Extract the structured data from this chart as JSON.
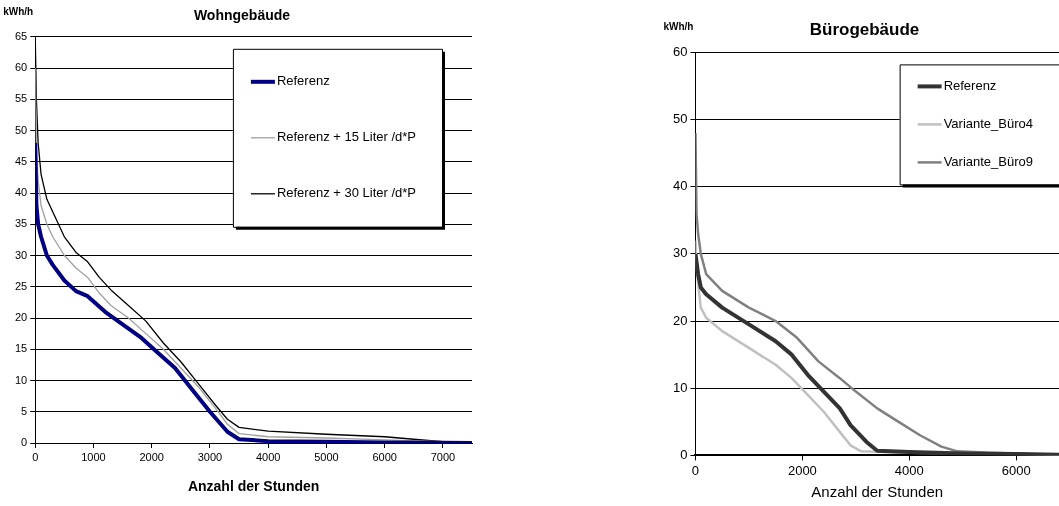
{
  "chart_data": [
    {
      "type": "line",
      "title": "Wohngebäude",
      "ylabel": "kWh/h",
      "xlabel": "Anzahl der Stunden",
      "xlim": [
        0,
        7500
      ],
      "xticks": [
        0,
        1000,
        2000,
        3000,
        4000,
        5000,
        6000,
        7000
      ],
      "ylim": [
        0,
        65
      ],
      "yticks": [
        0,
        5,
        10,
        15,
        20,
        25,
        30,
        35,
        40,
        45,
        50,
        55,
        60,
        65
      ],
      "grid": "y",
      "legend": "top right",
      "marker": "none",
      "line_style": "solid",
      "series": [
        {
          "name": "Referenz",
          "color": "#000080",
          "x": [
            0,
            20,
            50,
            100,
            200,
            300,
            500,
            700,
            900,
            1200,
            1500,
            1800,
            2100,
            2400,
            2700,
            3000,
            3300,
            3500,
            4000,
            5000,
            6000,
            7000,
            7500
          ],
          "values": [
            48,
            38,
            35,
            33,
            30,
            28.5,
            26,
            24.3,
            23.5,
            21,
            19,
            17,
            14.5,
            12,
            8.5,
            5,
            1.8,
            0.6,
            0.3,
            0.2,
            0.1,
            0.05,
            0
          ]
        },
        {
          "name": "Referenz + 15 Liter /d*P",
          "color": "#a0a0a0",
          "x": [
            0,
            20,
            50,
            100,
            200,
            300,
            500,
            700,
            900,
            1100,
            1300,
            1600,
            1900,
            2200,
            2500,
            2800,
            3100,
            3300,
            3500,
            4000,
            5000,
            6000,
            7000,
            7500
          ],
          "values": [
            60,
            47,
            42,
            38,
            35,
            33,
            30,
            28,
            26.5,
            24,
            22,
            20,
            17.5,
            15,
            12,
            9,
            5.5,
            3,
            1.5,
            1,
            0.8,
            0.5,
            0.2,
            0
          ]
        },
        {
          "name": "Referenz + 30 Liter /d*P",
          "color": "#000000",
          "x": [
            0,
            20,
            50,
            100,
            200,
            300,
            500,
            700,
            900,
            1100,
            1300,
            1600,
            1900,
            2200,
            2500,
            2800,
            3100,
            3300,
            3500,
            4000,
            5000,
            6000,
            6500,
            7000,
            7500
          ],
          "values": [
            65,
            55,
            48,
            43,
            39,
            37,
            33,
            30.5,
            29,
            26.5,
            24.5,
            22,
            19.5,
            16,
            13,
            9.5,
            6,
            3.8,
            2.5,
            1.9,
            1.4,
            1,
            0.6,
            0.2,
            0
          ]
        }
      ]
    },
    {
      "type": "line",
      "title": "Bürogebäude",
      "ylabel": "kWh/h",
      "xlabel": "Anzahl der Stunden",
      "xlim": [
        0,
        6800
      ],
      "xticks": [
        0,
        2000,
        4000,
        6000
      ],
      "ylim": [
        0,
        60
      ],
      "yticks": [
        0,
        10,
        20,
        30,
        40,
        50,
        60
      ],
      "grid": "y",
      "legend": "top right",
      "marker": "none",
      "line_style": "solid",
      "series": [
        {
          "name": "Referenz",
          "color": "#333333",
          "x": [
            0,
            50,
            100,
            200,
            500,
            1000,
            1500,
            1800,
            2100,
            2400,
            2700,
            2900,
            3200,
            3400,
            4000,
            5000,
            6000,
            6800
          ],
          "values": [
            30,
            27,
            25,
            24,
            22,
            19.5,
            17,
            15,
            12,
            9.5,
            7,
            4.5,
            2,
            0.7,
            0.5,
            0.3,
            0.2,
            0.1
          ]
        },
        {
          "name": "Variante_Büro4",
          "color": "#c0c0c0",
          "x": [
            0,
            30,
            100,
            200,
            500,
            1000,
            1500,
            1800,
            2100,
            2400,
            2700,
            2900,
            3100,
            4000,
            5000,
            6000,
            6800
          ],
          "values": [
            32,
            27,
            22,
            20.5,
            18.5,
            16,
            13.5,
            11.5,
            9,
            6.5,
            3.5,
            1.5,
            0.6,
            0.4,
            0.3,
            0.2,
            0.1
          ]
        },
        {
          "name": "Variante_Büro9",
          "color": "#808080",
          "x": [
            0,
            20,
            50,
            100,
            200,
            500,
            1000,
            1500,
            1900,
            2300,
            2700,
            3000,
            3400,
            3800,
            4200,
            4600,
            4900,
            5500,
            6000,
            6800
          ],
          "values": [
            48,
            36,
            33,
            30,
            27,
            24.5,
            22,
            20,
            17.5,
            14,
            11.5,
            9.5,
            7,
            5,
            3,
            1.3,
            0.6,
            0.4,
            0.3,
            0.05
          ]
        }
      ]
    }
  ]
}
